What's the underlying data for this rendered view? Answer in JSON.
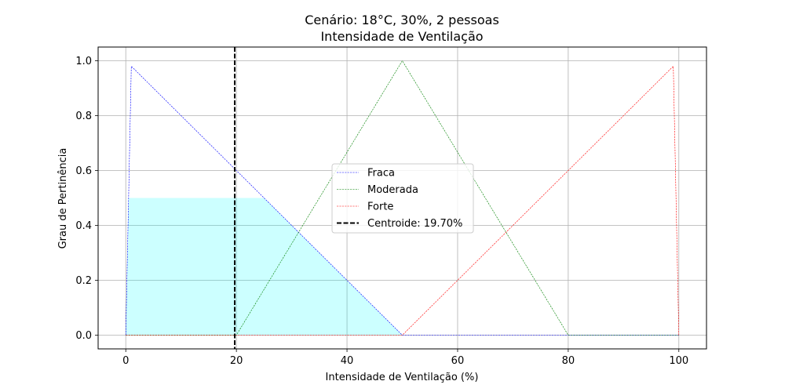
{
  "chart_data": {
    "type": "line",
    "title_line1": "Cenário: 18°C, 30%, 2 pessoas",
    "title_line2": "Intensidade de Ventilação",
    "xlabel": "Intensidade de Ventilação (%)",
    "ylabel": "Grau de Pertinência",
    "xlim": [
      -5,
      105
    ],
    "ylim": [
      -0.05,
      1.05
    ],
    "xticks": [
      0,
      20,
      40,
      60,
      80,
      100
    ],
    "yticks": [
      0.0,
      0.2,
      0.4,
      0.6,
      0.8,
      1.0
    ],
    "xtick_labels": [
      "0",
      "20",
      "40",
      "60",
      "80",
      "100"
    ],
    "ytick_labels": [
      "0.0",
      "0.2",
      "0.4",
      "0.6",
      "0.8",
      "1.0"
    ],
    "grid": true,
    "legend_position": "center",
    "series": [
      {
        "name": "Fraca",
        "color": "#0000ff",
        "x": [
          0,
          1,
          50,
          100
        ],
        "y": [
          0,
          0.98,
          0,
          0
        ]
      },
      {
        "name": "Moderada",
        "color": "#008000",
        "x": [
          0,
          20,
          50,
          80,
          100
        ],
        "y": [
          0,
          0,
          1.0,
          0,
          0
        ]
      },
      {
        "name": "Forte",
        "color": "#ff0000",
        "x": [
          0,
          50,
          99,
          100
        ],
        "y": [
          0,
          0,
          0.98,
          0
        ]
      }
    ],
    "fill_area": {
      "color": "#00ffff",
      "opacity": 0.2,
      "x": [
        0,
        0.5,
        25,
        50,
        50,
        0
      ],
      "y": [
        0,
        0.5,
        0.5,
        0,
        0,
        0
      ]
    },
    "centroid": {
      "label": "Centroide: 19.70%",
      "value": 19.7,
      "color": "#000000"
    }
  }
}
